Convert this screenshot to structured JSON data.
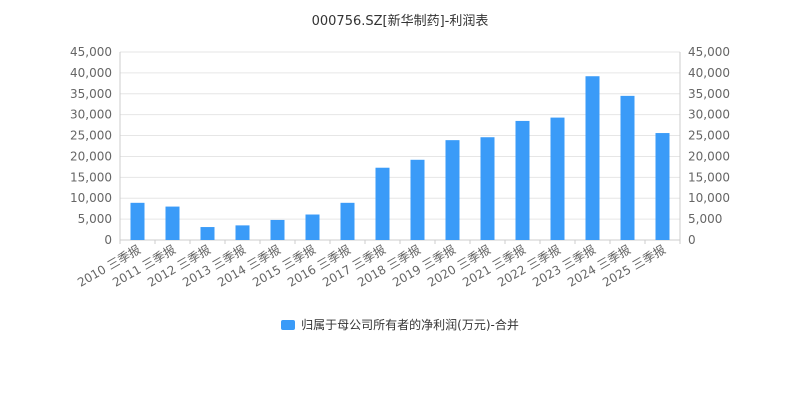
{
  "chart_data": {
    "type": "bar",
    "title": "000756.SZ[新华制药]-利润表",
    "categories": [
      "2010 三季报",
      "2011 三季报",
      "2012 三季报",
      "2013 三季报",
      "2014 三季报",
      "2015 三季报",
      "2016 三季报",
      "2017 三季报",
      "2018 三季报",
      "2019 三季报",
      "2020 三季报",
      "2021 三季报",
      "2022 三季报",
      "2023 三季报",
      "2024 三季报",
      "2025 三季报"
    ],
    "series": [
      {
        "name": "归属于母公司所有者的净利润(万元)-合并",
        "values": [
          8900,
          8000,
          3100,
          3500,
          4800,
          6100,
          8900,
          17300,
          19200,
          23900,
          24600,
          28500,
          29300,
          39200,
          34500,
          25600
        ]
      }
    ],
    "y_ticks": [
      "0",
      "5,000",
      "10,000",
      "15,000",
      "20,000",
      "25,000",
      "30,000",
      "35,000",
      "40,000",
      "45,000"
    ],
    "ylim": [
      0,
      45000
    ],
    "xlabel": "",
    "ylabel": "",
    "grid": true,
    "legend_position": "bottom",
    "colors": {
      "bar": "#3a9bf8",
      "grid": "#e6e6e6",
      "axis": "#cccccc",
      "text": "#666666"
    }
  }
}
